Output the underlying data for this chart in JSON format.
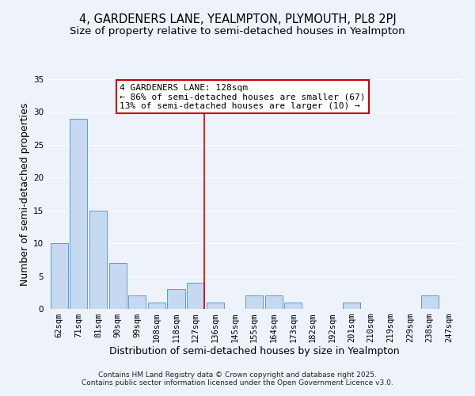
{
  "title": "4, GARDENERS LANE, YEALMPTON, PLYMOUTH, PL8 2PJ",
  "subtitle": "Size of property relative to semi-detached houses in Yealmpton",
  "xlabel": "Distribution of semi-detached houses by size in Yealmpton",
  "ylabel": "Number of semi-detached properties",
  "bin_labels": [
    "62sqm",
    "71sqm",
    "81sqm",
    "90sqm",
    "99sqm",
    "108sqm",
    "118sqm",
    "127sqm",
    "136sqm",
    "145sqm",
    "155sqm",
    "164sqm",
    "173sqm",
    "182sqm",
    "192sqm",
    "201sqm",
    "210sqm",
    "219sqm",
    "229sqm",
    "238sqm",
    "247sqm"
  ],
  "bar_values": [
    10,
    29,
    15,
    7,
    2,
    1,
    3,
    4,
    1,
    0,
    2,
    2,
    1,
    0,
    0,
    1,
    0,
    0,
    0,
    2,
    0
  ],
  "bar_color": "#c6d9f1",
  "bar_edge_color": "#5b9bd5",
  "highlight_bin": 7,
  "annotation_title": "4 GARDENERS LANE: 128sqm",
  "annotation_line1": "← 86% of semi-detached houses are smaller (67)",
  "annotation_line2": "13% of semi-detached houses are larger (10) →",
  "annotation_box_color": "#ffffff",
  "annotation_box_edge": "#cc0000",
  "vline_color": "#cc0000",
  "ylim": [
    0,
    35
  ],
  "yticks": [
    0,
    5,
    10,
    15,
    20,
    25,
    30,
    35
  ],
  "footer1": "Contains HM Land Registry data © Crown copyright and database right 2025.",
  "footer2": "Contains public sector information licensed under the Open Government Licence v3.0.",
  "background_color": "#eef2fb",
  "title_fontsize": 10.5,
  "subtitle_fontsize": 9.5,
  "axis_label_fontsize": 9,
  "tick_fontsize": 7.5,
  "annotation_fontsize": 8,
  "footer_fontsize": 6.5,
  "grid_color": "#ffffff"
}
